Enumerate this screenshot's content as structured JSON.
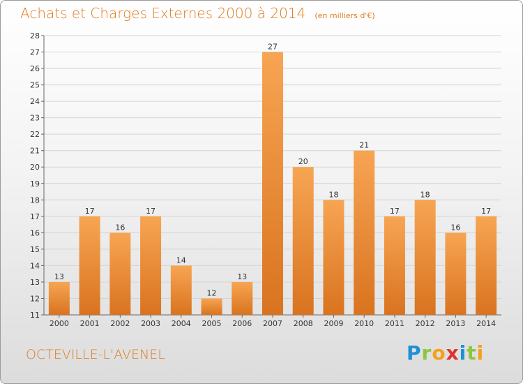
{
  "header": {
    "title": "Achats et Charges Externes 2000 à 2014",
    "unit": "(en milliers d'€)"
  },
  "footer": {
    "commune": "OCTEVILLE-L'AVENEL",
    "logo_letters": [
      "P",
      "r",
      "o",
      "x",
      "i",
      "t",
      "i"
    ],
    "logo_colors": [
      "#1f8fd6",
      "#8cc63f",
      "#f5a01a",
      "#e0312f",
      "#1f8fd6",
      "#8cc63f",
      "#f5a01a"
    ]
  },
  "chart_data": {
    "type": "bar",
    "title": "Achats et Charges Externes 2000 à 2014",
    "subtitle": "(en milliers d'€)",
    "categories": [
      "2000",
      "2001",
      "2002",
      "2003",
      "2004",
      "2005",
      "2006",
      "2007",
      "2008",
      "2009",
      "2010",
      "2011",
      "2012",
      "2013",
      "2014"
    ],
    "values": [
      13,
      17,
      16,
      17,
      14,
      12,
      13,
      27,
      20,
      18,
      21,
      17,
      18,
      16,
      17
    ],
    "ylim": [
      11,
      28
    ],
    "yticks": [
      11,
      12,
      13,
      14,
      15,
      16,
      17,
      18,
      19,
      20,
      21,
      22,
      23,
      24,
      25,
      26,
      27,
      28
    ],
    "grid": true,
    "bar_color_top": "#f7a553",
    "bar_color_bottom": "#d9731f"
  }
}
